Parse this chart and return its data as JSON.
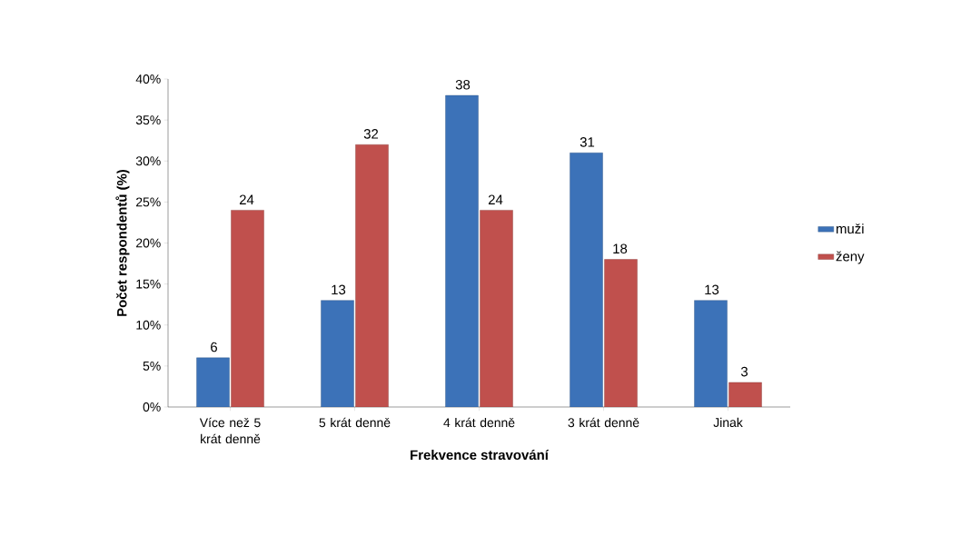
{
  "chart_data": {
    "type": "bar",
    "xlabel": "Frekvence stravování",
    "ylabel": "Počet respondentů (%)",
    "categories": [
      "Více než 5 krát denně",
      "5 krát denně",
      "4 krát denně",
      "3 krát denně",
      "Jinak"
    ],
    "series": [
      {
        "name": "muži",
        "color": "#3c72b8",
        "values": [
          6,
          13,
          38,
          31,
          13
        ]
      },
      {
        "name": "ženy",
        "color": "#c0504d",
        "values": [
          24,
          32,
          24,
          18,
          3
        ]
      }
    ],
    "ylim": [
      0,
      40
    ],
    "yticks": [
      {
        "value": 0,
        "label": "0%"
      },
      {
        "value": 5,
        "label": "5%"
      },
      {
        "value": 10,
        "label": "10%"
      },
      {
        "value": 15,
        "label": "15%"
      },
      {
        "value": 20,
        "label": "20%"
      },
      {
        "value": 25,
        "label": "25%"
      },
      {
        "value": 30,
        "label": "30%"
      },
      {
        "value": 35,
        "label": "35%"
      },
      {
        "value": 40,
        "label": "40%"
      }
    ],
    "data_labels": true,
    "legend": "right",
    "grid": false
  }
}
